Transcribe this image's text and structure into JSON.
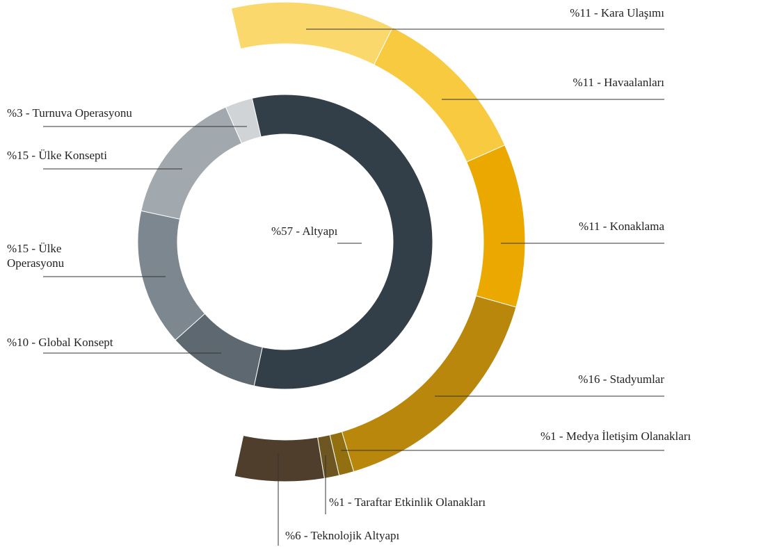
{
  "chart_data": {
    "type": "donut",
    "inner": {
      "labels": [
        "%57 - Altyapı",
        "%10 - Global Konsept",
        "%15 - Ülke Operasyonu",
        "%15 - Ülke Konsepti",
        "%3 - Turnuva Operasyonu"
      ],
      "values": [
        57,
        10,
        15,
        15,
        3
      ],
      "colors": [
        "#333f48",
        "#5d6870",
        "#7d878f",
        "#a1a8ae",
        "#d1d4d7"
      ]
    },
    "outer": {
      "labels": [
        "%11 - Kara Ulaşımı",
        "%11 - Havaalanları",
        "%11 - Konaklama",
        "%16 - Stadyumlar",
        "%1 - Medya İletişim Olanakları",
        "%1 - Taraftar Etkinlik Olanakları",
        "%6 - Teknolojik Altyapı"
      ],
      "values": [
        11,
        11,
        11,
        16,
        1,
        1,
        6
      ],
      "colors": [
        "#fbd86c",
        "#f8ca40",
        "#eba900",
        "#b8870c",
        "#93700f",
        "#6e5622",
        "#4f3e2b"
      ]
    }
  }
}
